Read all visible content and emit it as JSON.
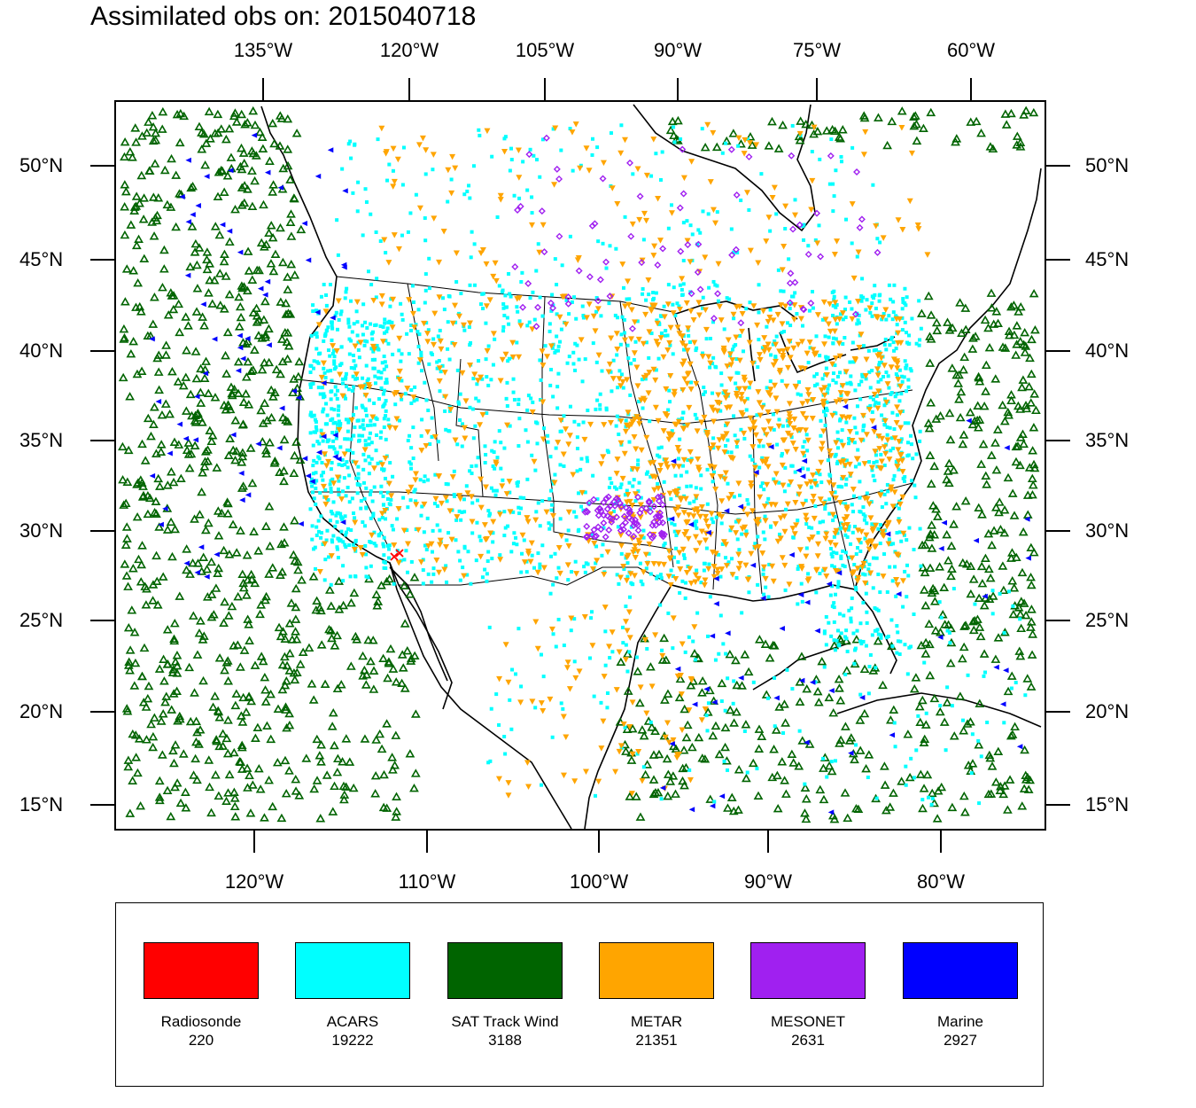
{
  "title": "Assimilated obs on: 2015040718",
  "top_lon_labels": [
    "135°W",
    "120°W",
    "105°W",
    "90°W",
    "75°W",
    "60°W"
  ],
  "bottom_lon_labels": [
    "120°W",
    "110°W",
    "100°W",
    "90°W",
    "80°W"
  ],
  "lat_labels": [
    "50°N",
    "45°N",
    "40°N",
    "35°N",
    "30°N",
    "25°N",
    "20°N",
    "15°N"
  ],
  "legend": [
    {
      "name": "Radiosonde",
      "count": "220",
      "color": "#ff0000"
    },
    {
      "name": "ACARS",
      "count": "19222",
      "color": "#00ffff"
    },
    {
      "name": "SAT Track Wind",
      "count": "3188",
      "color": "#006400"
    },
    {
      "name": "METAR",
      "count": "21351",
      "color": "#ffa500"
    },
    {
      "name": "MESONET",
      "count": "2631",
      "color": "#a020f0"
    },
    {
      "name": "Marine",
      "count": "2927",
      "color": "#0000ff"
    }
  ]
}
